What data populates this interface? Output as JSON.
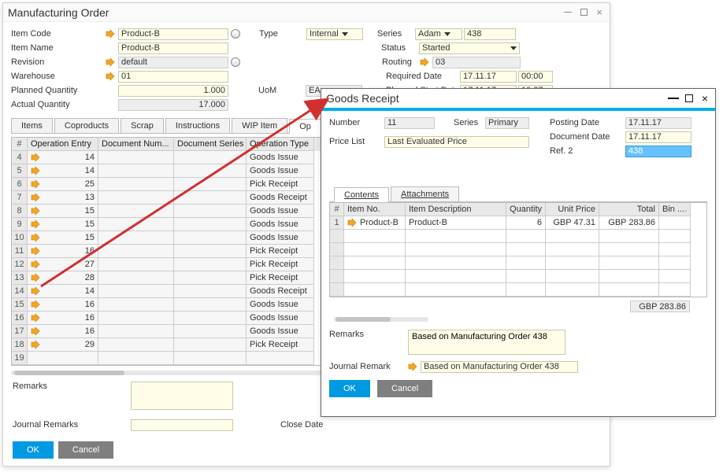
{
  "colors": {
    "accent": "#009ae2",
    "cancel": "#7f7f7f",
    "field_bg": "#fffde8",
    "arrow": "#f5a623",
    "ro_bg": "#eeeeee",
    "highlight": "#66c2ff",
    "red": "#d32f2f",
    "topbar": "#00aeef"
  },
  "mo": {
    "title": "Manufacturing Order",
    "labels": {
      "item_code": "Item Code",
      "item_name": "Item Name",
      "revision": "Revision",
      "warehouse": "Warehouse",
      "planned_qty": "Planned Quantity",
      "actual_qty": "Actual Quantity",
      "type": "Type",
      "uom": "UoM",
      "series": "Series",
      "status": "Status",
      "routing": "Routing",
      "required_date": "Required Date",
      "planned_start": "Planned Start Date",
      "remarks": "Remarks",
      "journal_remarks": "Journal Remarks",
      "close_date": "Close Date"
    },
    "values": {
      "item_code": "Product-B",
      "item_name": "Product-B",
      "revision": "default",
      "warehouse": "01",
      "planned_qty": "1.000",
      "actual_qty": "17.000",
      "type": "Internal",
      "uom": "EA",
      "series": "Adam",
      "series_no": "438",
      "status": "Started",
      "routing": "03",
      "required_date": "17.11.17",
      "required_time": "00:00",
      "planned_start_date": "17.11.17",
      "planned_start_time": "10:27"
    },
    "tabs": [
      "Items",
      "Coproducts",
      "Scrap",
      "Instructions",
      "WIP Item",
      "Op"
    ],
    "grid": {
      "cols": {
        "num": "#",
        "op": "Operation Entry",
        "doc": "Document Num...",
        "ser": "Document Series",
        "type": "Operation Type"
      },
      "rows": [
        {
          "n": "4",
          "op": "14",
          "type": "Goods Issue"
        },
        {
          "n": "5",
          "op": "14",
          "type": "Goods Issue"
        },
        {
          "n": "6",
          "op": "25",
          "type": "Pick Receipt"
        },
        {
          "n": "7",
          "op": "13",
          "type": "Goods Receipt"
        },
        {
          "n": "8",
          "op": "15",
          "type": "Goods Issue"
        },
        {
          "n": "9",
          "op": "15",
          "type": "Goods Issue"
        },
        {
          "n": "10",
          "op": "15",
          "type": "Goods Issue"
        },
        {
          "n": "11",
          "op": "16",
          "type": "Pick Receipt"
        },
        {
          "n": "12",
          "op": "27",
          "type": "Pick Receipt"
        },
        {
          "n": "13",
          "op": "28",
          "type": "Pick Receipt"
        },
        {
          "n": "14",
          "op": "14",
          "type": "Goods Receipt"
        },
        {
          "n": "15",
          "op": "16",
          "type": "Goods Issue"
        },
        {
          "n": "16",
          "op": "16",
          "type": "Goods Issue"
        },
        {
          "n": "17",
          "op": "16",
          "type": "Goods Issue"
        },
        {
          "n": "18",
          "op": "29",
          "type": "Pick Receipt"
        },
        {
          "n": "19",
          "op": "",
          "type": ""
        }
      ]
    },
    "buttons": {
      "ok": "OK",
      "cancel": "Cancel"
    }
  },
  "gr": {
    "title": "Goods Receipt",
    "labels": {
      "number": "Number",
      "series": "Series",
      "price_list": "Price List",
      "posting_date": "Posting Date",
      "doc_date": "Document Date",
      "ref2": "Ref. 2",
      "remarks": "Remarks",
      "journal_remark": "Journal Remark"
    },
    "values": {
      "number": "11",
      "series": "Primary",
      "price_list": "Last Evaluated Price",
      "posting_date": "17.11.17",
      "doc_date": "17.11.17",
      "ref2": "438",
      "remarks": "Based on Manufacturing Order 438",
      "journal_remark": "Based on Manufacturing Order 438"
    },
    "tabs": [
      "Contents",
      "Attachments"
    ],
    "grid": {
      "cols": {
        "n": "#",
        "item": "Item No.",
        "desc": "Item Description",
        "qty": "Quantity",
        "up": "Unit Price",
        "tot": "Total",
        "bin": "Bin ..."
      },
      "rows": [
        {
          "n": "1",
          "item": "Product-B",
          "desc": "Product-B",
          "qty": "6",
          "up": "GBP 47.31",
          "tot": "GBP 283.86"
        }
      ],
      "total": "GBP 283.86"
    },
    "buttons": {
      "ok": "OK",
      "cancel": "Cancel"
    }
  }
}
